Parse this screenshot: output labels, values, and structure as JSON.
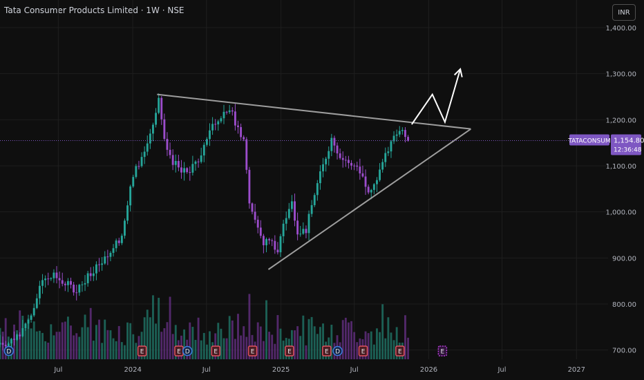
{
  "header": {
    "title": "Tata Consumer Products Limited · 1W · NSE",
    "currency": "INR"
  },
  "price_label": {
    "ticker": "TATACONSUM",
    "price": "1,154.80",
    "countdown": "12:36:48",
    "color": "#7e57c2"
  },
  "colors": {
    "up": "#26a69a",
    "down": "#9c4dcc",
    "background": "#0f0f0f",
    "grid": "#1e1e1e",
    "axis_text": "#b2b5be",
    "drawing": "#9e9e9e",
    "arrow": "#ffffff"
  },
  "chart_data": {
    "type": "candlestick",
    "symbol": "TATACONSUM",
    "exchange": "NSE",
    "interval": "1W",
    "y_ticks": [
      "1,400.00",
      "1,300.00",
      "1,200.00",
      "1,100.00",
      "1,000.00",
      "900.00",
      "800.00",
      "700.00"
    ],
    "y_tick_values": [
      1400,
      1300,
      1200,
      1100,
      1000,
      900,
      800,
      700
    ],
    "ylim": [
      680,
      1460
    ],
    "x_ticks": [
      "Jul",
      "2024",
      "Jul",
      "2025",
      "Jul",
      "2026",
      "Jul",
      "2027"
    ],
    "x_tick_dates": [
      "2023-07-01",
      "2024-01-01",
      "2024-07-01",
      "2025-01-01",
      "2025-07-01",
      "2026-01-01",
      "2026-07-01",
      "2027-01-01"
    ],
    "xlim": [
      "2023-02-07",
      "2027-03-20"
    ],
    "grid": true,
    "last_price": 1154.8,
    "anchors": [
      [
        "2023-02-07",
        716
      ],
      [
        "2023-02-28",
        716
      ],
      [
        "2023-03-28",
        738
      ],
      [
        "2023-04-25",
        780
      ],
      [
        "2023-05-23",
        850
      ],
      [
        "2023-06-20",
        860
      ],
      [
        "2023-07-18",
        845
      ],
      [
        "2023-08-15",
        830
      ],
      [
        "2023-09-12",
        860
      ],
      [
        "2023-10-10",
        890
      ],
      [
        "2023-11-07",
        915
      ],
      [
        "2023-12-05",
        950
      ],
      [
        "2024-01-02",
        1080
      ],
      [
        "2024-01-30",
        1130
      ],
      [
        "2024-02-20",
        1190
      ],
      [
        "2024-03-05",
        1240
      ],
      [
        "2024-03-19",
        1150
      ],
      [
        "2024-04-09",
        1110
      ],
      [
        "2024-04-30",
        1085
      ],
      [
        "2024-05-21",
        1090
      ],
      [
        "2024-06-11",
        1110
      ],
      [
        "2024-06-25",
        1150
      ],
      [
        "2024-07-23",
        1195
      ],
      [
        "2024-08-13",
        1220
      ],
      [
        "2024-09-03",
        1210
      ],
      [
        "2024-10-01",
        1150
      ],
      [
        "2024-10-15",
        1025
      ],
      [
        "2024-11-05",
        960
      ],
      [
        "2024-11-19",
        935
      ],
      [
        "2024-12-10",
        930
      ],
      [
        "2024-12-24",
        915
      ],
      [
        "2025-01-07",
        975
      ],
      [
        "2025-01-28",
        1020
      ],
      [
        "2025-02-11",
        960
      ],
      [
        "2025-03-04",
        960
      ],
      [
        "2025-03-25",
        1040
      ],
      [
        "2025-04-15",
        1100
      ],
      [
        "2025-05-06",
        1160
      ],
      [
        "2025-05-27",
        1120
      ],
      [
        "2025-06-24",
        1105
      ],
      [
        "2025-07-15",
        1085
      ],
      [
        "2025-08-05",
        1050
      ],
      [
        "2025-08-26",
        1070
      ],
      [
        "2025-09-16",
        1120
      ],
      [
        "2025-10-07",
        1160
      ],
      [
        "2025-10-28",
        1180
      ],
      [
        "2025-11-11",
        1155
      ]
    ],
    "drawings": {
      "triangle_upper": [
        [
          "2024-03-01",
          1255
        ],
        [
          "2026-04-15",
          1180
        ]
      ],
      "triangle_lower": [
        [
          "2024-12-01",
          875
        ],
        [
          "2026-04-15",
          1180
        ]
      ],
      "projection_arrow": [
        [
          "2025-11-20",
          1190
        ],
        [
          "2026-01-10",
          1255
        ],
        [
          "2026-02-10",
          1195
        ],
        [
          "2026-03-20",
          1310
        ]
      ]
    },
    "event_markers": [
      {
        "date": "2023-03-01",
        "label": "D",
        "type": "dividend"
      },
      {
        "date": "2024-01-24",
        "label": "E",
        "type": "earnings"
      },
      {
        "date": "2024-04-24",
        "label": "E",
        "type": "earnings"
      },
      {
        "date": "2024-05-15",
        "label": "D",
        "type": "dividend"
      },
      {
        "date": "2024-07-24",
        "label": "E",
        "type": "earnings"
      },
      {
        "date": "2024-10-23",
        "label": "E",
        "type": "earnings"
      },
      {
        "date": "2025-01-22",
        "label": "E",
        "type": "earnings"
      },
      {
        "date": "2025-04-24",
        "label": "E",
        "type": "earnings"
      },
      {
        "date": "2025-05-21",
        "label": "D",
        "type": "dividend"
      },
      {
        "date": "2025-07-23",
        "label": "E",
        "type": "earnings"
      },
      {
        "date": "2025-10-22",
        "label": "E",
        "type": "earnings"
      },
      {
        "date": "2026-02-04",
        "label": "E",
        "type": "upcoming-earnings"
      }
    ]
  }
}
